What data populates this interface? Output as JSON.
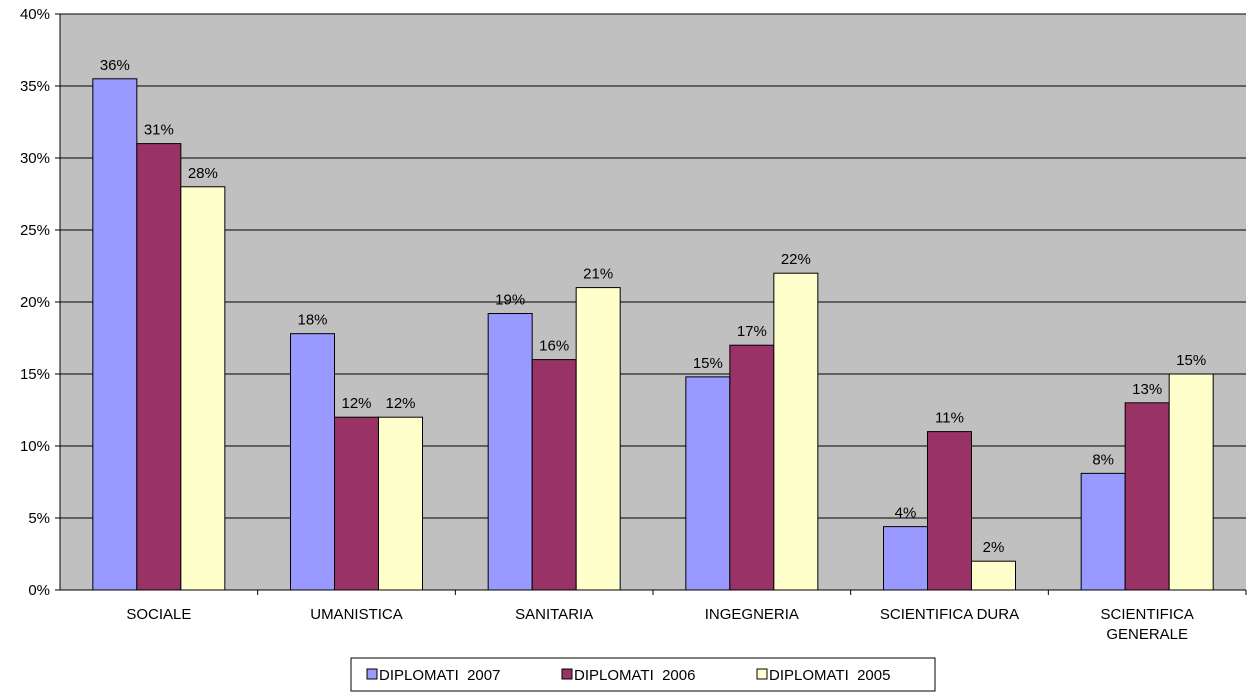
{
  "chart_data": {
    "type": "bar",
    "categories": [
      [
        "SOCIALE"
      ],
      [
        "UMANISTICA"
      ],
      [
        "SANITARIA"
      ],
      [
        "INGEGNERIA"
      ],
      [
        "SCIENTIFICA DURA"
      ],
      [
        "SCIENTIFICA",
        "GENERALE"
      ]
    ],
    "series": [
      {
        "name": "DIPLOMATI  2007",
        "color": "#9999ff",
        "values": [
          35.5,
          17.8,
          19.2,
          14.8,
          4.4,
          8.1
        ],
        "labels": [
          "36%",
          "18%",
          "19%",
          "15%",
          "4%",
          "8%"
        ]
      },
      {
        "name": "DIPLOMATI  2006",
        "color": "#993366",
        "values": [
          31,
          12,
          16,
          17,
          11,
          13
        ],
        "labels": [
          "31%",
          "12%",
          "16%",
          "17%",
          "11%",
          "13%"
        ]
      },
      {
        "name": "DIPLOMATI  2005",
        "color": "#ffffcc",
        "values": [
          28,
          12,
          21,
          22,
          2,
          15
        ],
        "labels": [
          "28%",
          "12%",
          "21%",
          "22%",
          "2%",
          "15%"
        ]
      }
    ],
    "yticks": [
      "0%",
      "5%",
      "10%",
      "15%",
      "20%",
      "25%",
      "30%",
      "35%",
      "40%"
    ],
    "ylim": [
      0,
      40
    ],
    "grid": true,
    "plot_background": "#c0c0c0",
    "legend_position": "bottom"
  }
}
